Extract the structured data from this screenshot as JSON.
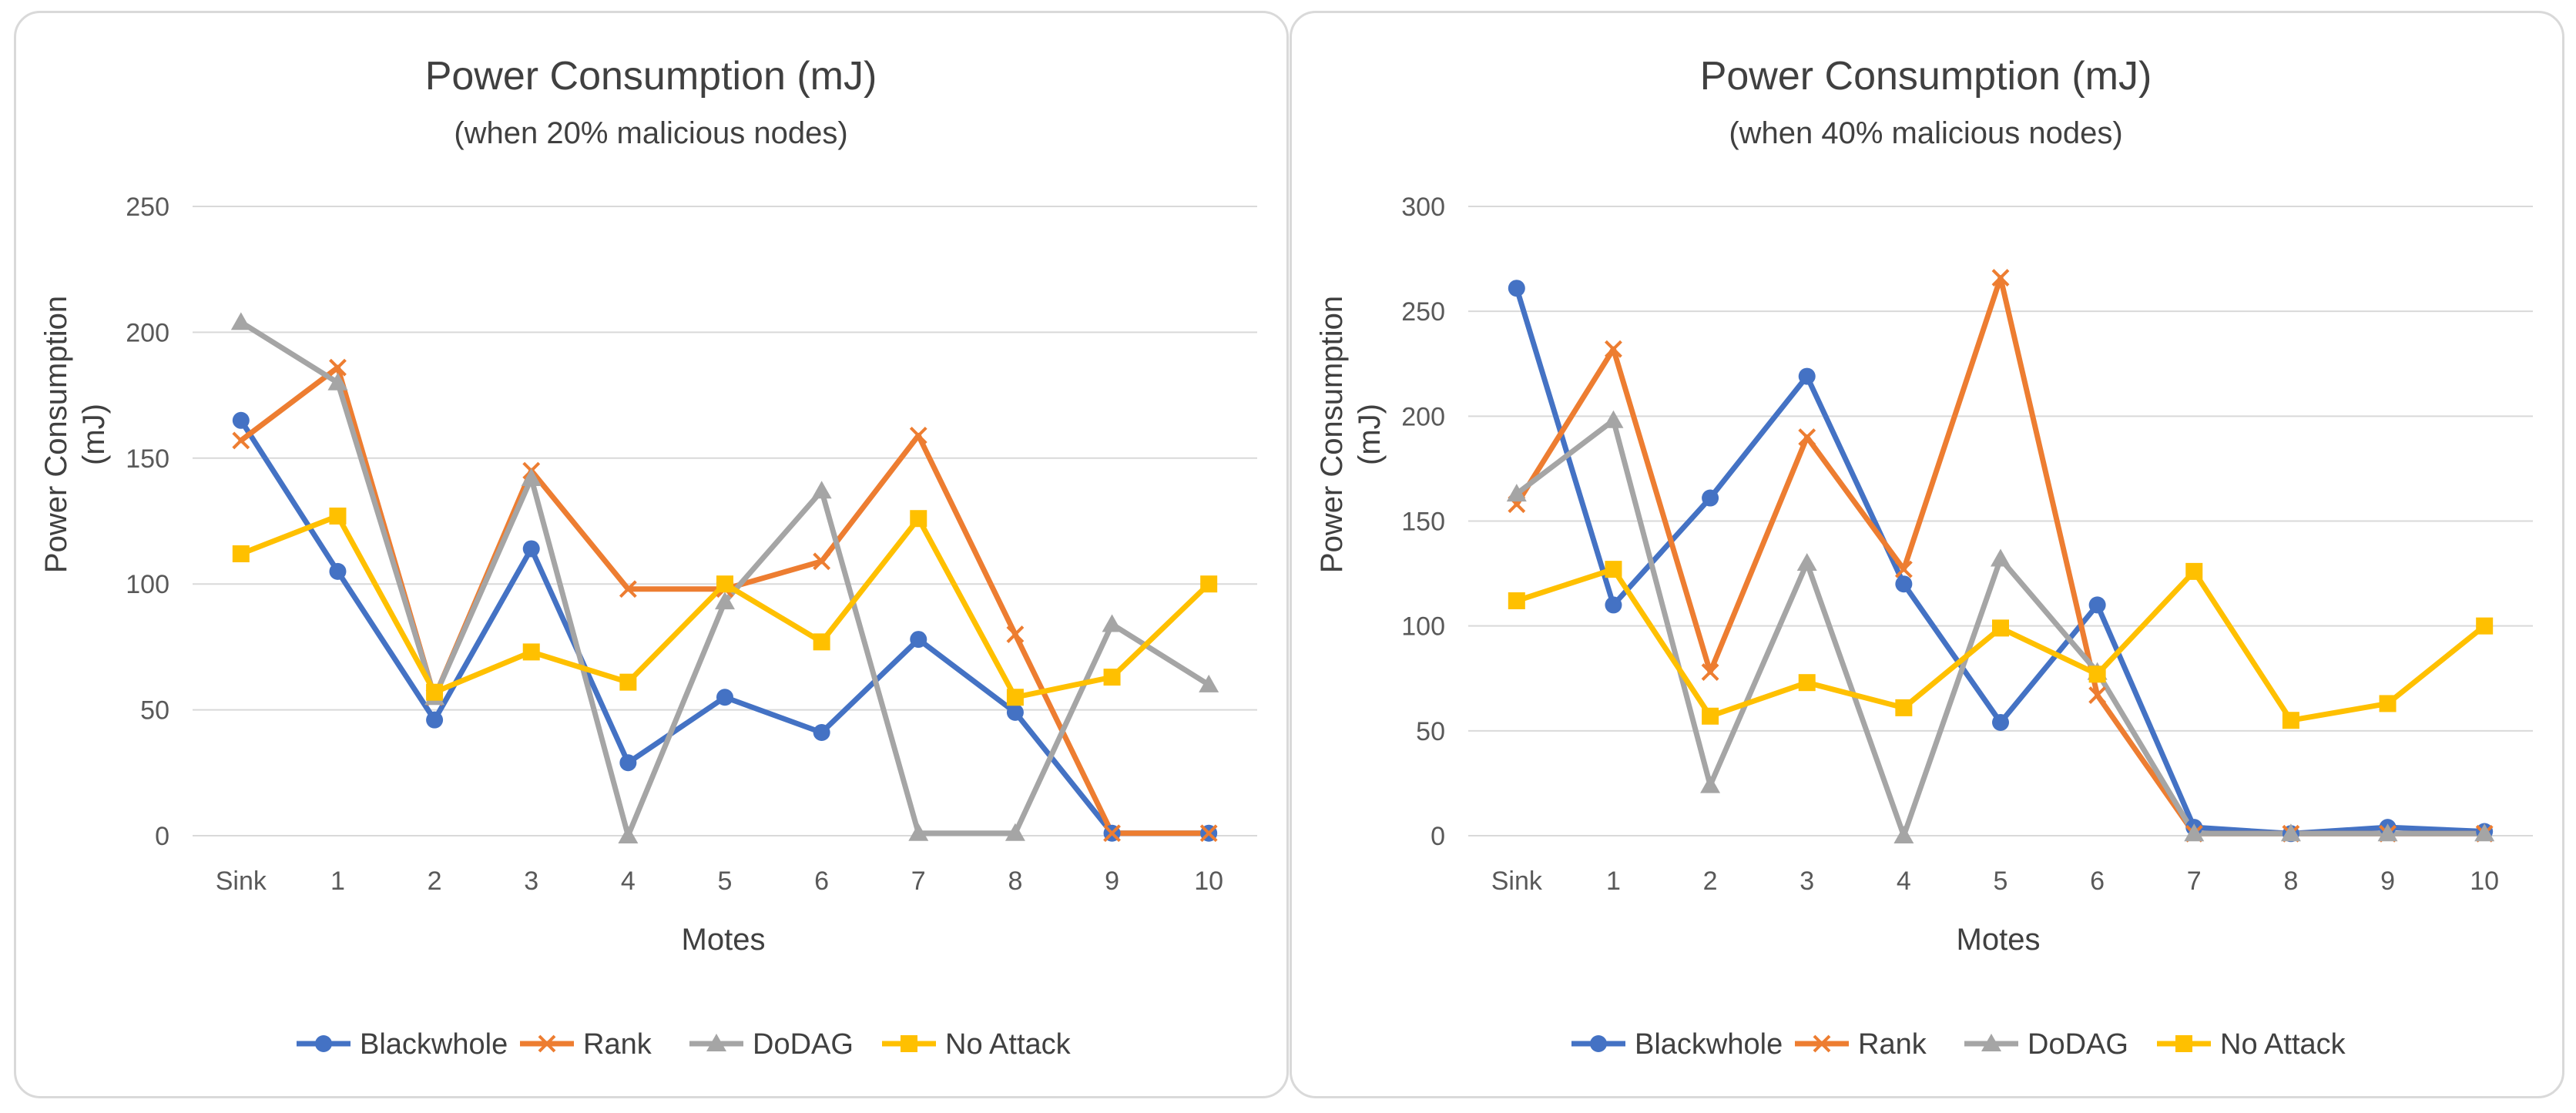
{
  "chart_data": [
    {
      "type": "line",
      "title": "Power Consumption (mJ)",
      "subtitle": "(when 20% malicious nodes)",
      "xlabel": "Motes",
      "ylabel_lines": [
        "Power Consumption",
        "(mJ)"
      ],
      "categories": [
        "Sink",
        "1",
        "2",
        "3",
        "4",
        "5",
        "6",
        "7",
        "8",
        "9",
        "10"
      ],
      "ylim": [
        0,
        250
      ],
      "yticks": [
        0,
        50,
        100,
        150,
        200,
        250
      ],
      "grid": true,
      "legend": "bottom",
      "series": [
        {
          "name": "Blackwhole",
          "color": "#4472C4",
          "marker": "circle",
          "values": [
            165,
            105,
            46,
            114,
            29,
            55,
            41,
            78,
            49,
            1,
            1
          ]
        },
        {
          "name": "Rank",
          "color": "#ED7D31",
          "marker": "x",
          "values": [
            157,
            186,
            55,
            145,
            98,
            98,
            109,
            159,
            80,
            1,
            1
          ]
        },
        {
          "name": "DoDAG",
          "color": "#A5A5A5",
          "marker": "triangle",
          "values": [
            204,
            180,
            55,
            142,
            0,
            93,
            137,
            1,
            1,
            84,
            60
          ]
        },
        {
          "name": "No Attack",
          "color": "#FFC000",
          "marker": "square",
          "values": [
            112,
            127,
            57,
            73,
            61,
            100,
            77,
            126,
            55,
            63,
            100
          ]
        }
      ]
    },
    {
      "type": "line",
      "title": "Power Consumption (mJ)",
      "subtitle": "(when 40% malicious nodes)",
      "xlabel": "Motes",
      "ylabel_lines": [
        "Power Consumption",
        "(mJ)"
      ],
      "categories": [
        "Sink",
        "1",
        "2",
        "3",
        "4",
        "5",
        "6",
        "7",
        "8",
        "9",
        "10"
      ],
      "ylim": [
        0,
        300
      ],
      "yticks": [
        0,
        50,
        100,
        150,
        200,
        250,
        300
      ],
      "grid": true,
      "legend": "bottom",
      "series": [
        {
          "name": "Blackwhole",
          "color": "#4472C4",
          "marker": "circle",
          "values": [
            261,
            110,
            161,
            219,
            120,
            54,
            110,
            4,
            1,
            4,
            2
          ]
        },
        {
          "name": "Rank",
          "color": "#ED7D31",
          "marker": "x",
          "values": [
            158,
            232,
            78,
            190,
            127,
            266,
            67,
            1,
            1,
            1,
            1
          ]
        },
        {
          "name": "DoDAG",
          "color": "#A5A5A5",
          "marker": "triangle",
          "values": [
            163,
            198,
            24,
            130,
            0,
            132,
            78,
            1,
            1,
            1,
            1
          ]
        },
        {
          "name": "No Attack",
          "color": "#FFC000",
          "marker": "square",
          "values": [
            112,
            127,
            57,
            73,
            61,
            99,
            77,
            126,
            55,
            63,
            100
          ]
        }
      ]
    }
  ]
}
